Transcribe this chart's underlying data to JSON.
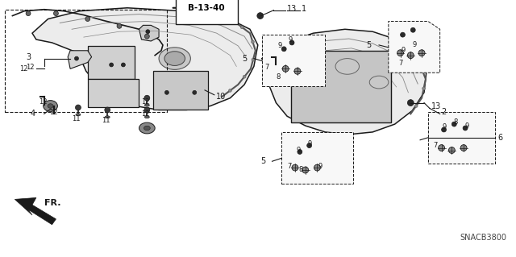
{
  "bg_color": "#ffffff",
  "fig_width": 6.4,
  "fig_height": 3.19,
  "dpi": 100,
  "diagram_id": "SNACB3800",
  "reference": "B-13-40",
  "line_color": "#1a1a1a",
  "fill_color": "#e8e8e8",
  "light_fill": "#f0f0f0",
  "dark_fill": "#c0c0c0"
}
